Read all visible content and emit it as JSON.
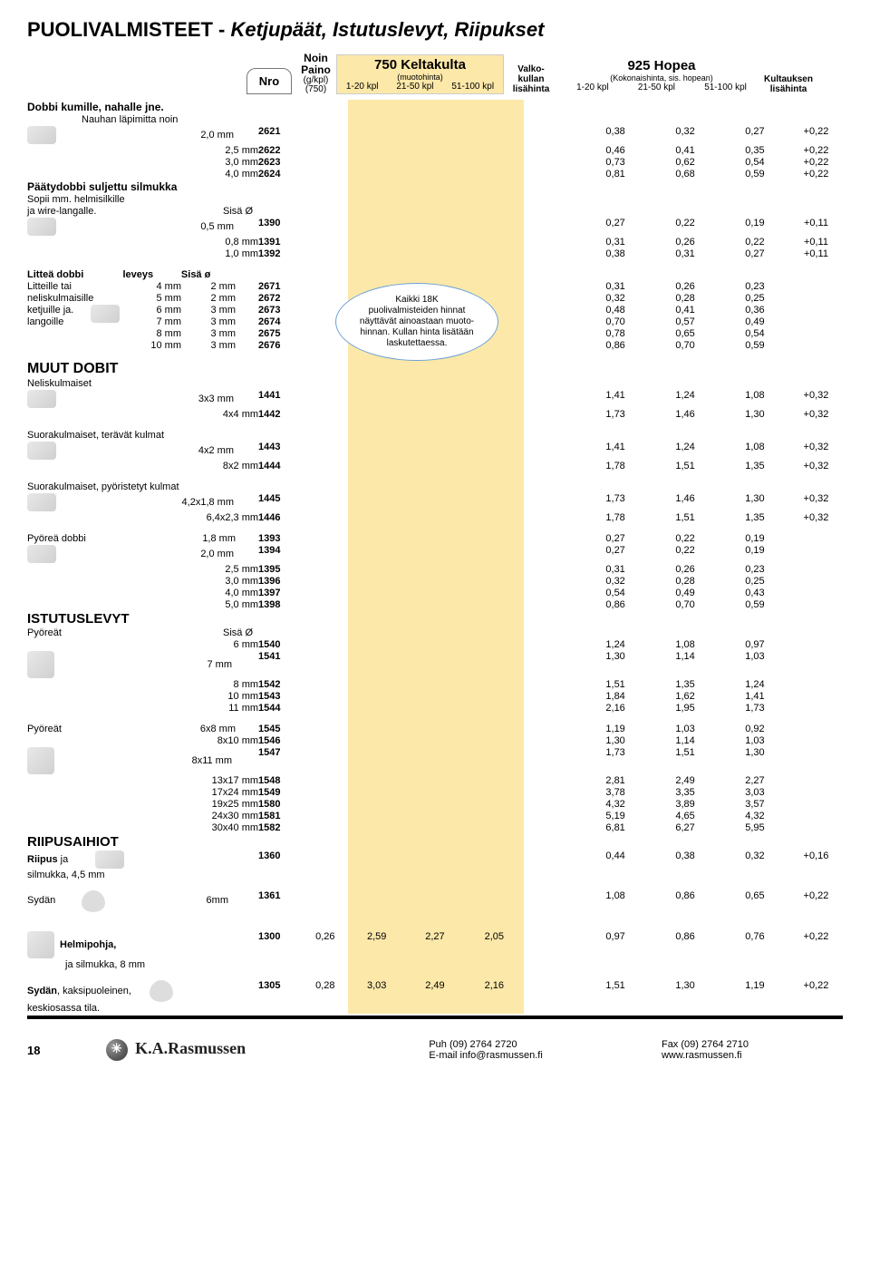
{
  "title_lead": "PUOLIVALMISTEET - ",
  "title_ital": "Ketjupäät, Istutuslevyt, Riipukset",
  "header": {
    "nro": "Nro",
    "paino_lines": [
      "Noin",
      "Paino",
      "(g/kpl)",
      "(750)"
    ],
    "gold_title": "750 Keltakulta",
    "gold_sub": "(muotohinta)",
    "price_cols": [
      "1-20 kpl",
      "21-50 kpl",
      "51-100 kpl"
    ],
    "valko": [
      "Valko-",
      "kullan",
      "lisähinta"
    ],
    "silver_title": "925 Hopea",
    "silver_sub": "(Kokonaishinta, sis. hopean)",
    "kult": [
      "Kultauksen",
      "lisähinta"
    ]
  },
  "bubble": [
    "Kaikki 18K",
    "puolivalmisteiden hinnat",
    "näyttävät ainoastaan muoto-",
    "hinnan. Kullan hinta lisätään",
    "laskutettaessa."
  ],
  "sections": {
    "dobbi_kumille": {
      "title": "Dobbi kumille, nahalle jne.",
      "sub": "Nauhan läpimitta noin",
      "rows": [
        {
          "lbl": "2,0 mm",
          "nro": "2621",
          "s1": "0,38",
          "s2": "0,32",
          "s3": "0,27",
          "kl": "+0,22"
        },
        {
          "lbl": "2,5 mm",
          "nro": "2622",
          "s1": "0,46",
          "s2": "0,41",
          "s3": "0,35",
          "kl": "+0,22"
        },
        {
          "lbl": "3,0 mm",
          "nro": "2623",
          "s1": "0,73",
          "s2": "0,62",
          "s3": "0,54",
          "kl": "+0,22"
        },
        {
          "lbl": "4,0 mm",
          "nro": "2624",
          "s1": "0,81",
          "s2": "0,68",
          "s3": "0,59",
          "kl": "+0,22"
        }
      ]
    },
    "paatydobbi": {
      "title": "Päätydobbi suljettu silmukka",
      "sub1": "Sopii mm. helmisilkille",
      "sub2": "ja wire-langalle.",
      "sub_r": "Sisä Ø",
      "rows": [
        {
          "lbl": "0,5 mm",
          "nro": "1390",
          "s1": "0,27",
          "s2": "0,22",
          "s3": "0,19",
          "kl": "+0,11"
        },
        {
          "lbl": "0,8 mm",
          "nro": "1391",
          "s1": "0,31",
          "s2": "0,26",
          "s3": "0,22",
          "kl": "+0,11"
        },
        {
          "lbl": "1,0 mm",
          "nro": "1392",
          "s1": "0,38",
          "s2": "0,31",
          "s3": "0,27",
          "kl": "+0,11"
        }
      ]
    },
    "littea": {
      "head": [
        "Litteä dobbi",
        "leveys",
        "Sisä ø"
      ],
      "descs": [
        "Litteille tai",
        "neliskulmaisille",
        "ketjuille ja.",
        "langoille",
        "",
        ""
      ],
      "rows": [
        {
          "lev": "4 mm",
          "siso": "2 mm",
          "nro": "2671",
          "s1": "0,31",
          "s2": "0,26",
          "s3": "0,23"
        },
        {
          "lev": "5 mm",
          "siso": "2 mm",
          "nro": "2672",
          "s1": "0,32",
          "s2": "0,28",
          "s3": "0,25"
        },
        {
          "lev": "6 mm",
          "siso": "3 mm",
          "nro": "2673",
          "s1": "0,48",
          "s2": "0,41",
          "s3": "0,36"
        },
        {
          "lev": "7 mm",
          "siso": "3 mm",
          "nro": "2674",
          "s1": "0,70",
          "s2": "0,57",
          "s3": "0,49"
        },
        {
          "lev": "8 mm",
          "siso": "3 mm",
          "nro": "2675",
          "s1": "0,78",
          "s2": "0,65",
          "s3": "0,54"
        },
        {
          "lev": "10 mm",
          "siso": "3 mm",
          "nro": "2676",
          "s1": "0,86",
          "s2": "0,70",
          "s3": "0,59"
        }
      ]
    },
    "muut": {
      "title": "MUUT DOBIT",
      "sub": "Neliskulmaiset",
      "rows": [
        {
          "lbl": "3x3 mm",
          "nro": "1441",
          "s1": "1,41",
          "s2": "1,24",
          "s3": "1,08",
          "kl": "+0,32"
        },
        {
          "lbl": "4x4 mm",
          "nro": "1442",
          "s1": "1,73",
          "s2": "1,46",
          "s3": "1,30",
          "kl": "+0,32"
        }
      ]
    },
    "suora_terava": {
      "title": "Suorakulmaiset, terävät kulmat",
      "rows": [
        {
          "lbl": "4x2 mm",
          "nro": "1443",
          "s1": "1,41",
          "s2": "1,24",
          "s3": "1,08",
          "kl": "+0,32"
        },
        {
          "lbl": "8x2 mm",
          "nro": "1444",
          "s1": "1,78",
          "s2": "1,51",
          "s3": "1,35",
          "kl": "+0,32"
        }
      ]
    },
    "suora_pyor": {
      "title": "Suorakulmaiset, pyöristetyt kulmat",
      "rows": [
        {
          "lbl": "4,2x1,8 mm",
          "nro": "1445",
          "s1": "1,73",
          "s2": "1,46",
          "s3": "1,30",
          "kl": "+0,32"
        },
        {
          "lbl": "6,4x2,3 mm",
          "nro": "1446",
          "s1": "1,78",
          "s2": "1,51",
          "s3": "1,35",
          "kl": "+0,32"
        }
      ]
    },
    "pyorea_dobbi": {
      "title": "Pyöreä dobbi",
      "rows": [
        {
          "lbl": "1,8 mm",
          "nro": "1393",
          "s1": "0,27",
          "s2": "0,22",
          "s3": "0,19"
        },
        {
          "lbl": "2,0 mm",
          "nro": "1394",
          "s1": "0,27",
          "s2": "0,22",
          "s3": "0,19"
        },
        {
          "lbl": "2,5 mm",
          "nro": "1395",
          "s1": "0,31",
          "s2": "0,26",
          "s3": "0,23"
        },
        {
          "lbl": "3,0 mm",
          "nro": "1396",
          "s1": "0,32",
          "s2": "0,28",
          "s3": "0,25"
        },
        {
          "lbl": "4,0 mm",
          "nro": "1397",
          "s1": "0,54",
          "s2": "0,49",
          "s3": "0,43"
        },
        {
          "lbl": "5,0 mm",
          "nro": "1398",
          "s1": "0,86",
          "s2": "0,70",
          "s3": "0,59"
        }
      ]
    },
    "istutus": {
      "title": "ISTUTUSLEVYT",
      "sub": "Pyöreät",
      "sub_r": "Sisä Ø",
      "rows": [
        {
          "lbl": "6 mm",
          "nro": "1540",
          "s1": "1,24",
          "s2": "1,08",
          "s3": "0,97"
        },
        {
          "lbl": "7 mm",
          "nro": "1541",
          "s1": "1,30",
          "s2": "1,14",
          "s3": "1,03"
        },
        {
          "lbl": "8 mm",
          "nro": "1542",
          "s1": "1,51",
          "s2": "1,35",
          "s3": "1,24"
        },
        {
          "lbl": "10 mm",
          "nro": "1543",
          "s1": "1,84",
          "s2": "1,62",
          "s3": "1,41"
        },
        {
          "lbl": "11 mm",
          "nro": "1544",
          "s1": "2,16",
          "s2": "1,95",
          "s3": "1,73"
        }
      ]
    },
    "pyoreat2": {
      "title": "Pyöreät",
      "rows": [
        {
          "lbl": "6x8 mm",
          "nro": "1545",
          "s1": "1,19",
          "s2": "1,03",
          "s3": "0,92"
        },
        {
          "lbl": "8x10 mm",
          "nro": "1546",
          "s1": "1,30",
          "s2": "1,14",
          "s3": "1,03"
        },
        {
          "lbl": "8x11 mm",
          "nro": "1547",
          "s1": "1,73",
          "s2": "1,51",
          "s3": "1,30"
        },
        {
          "lbl": "13x17 mm",
          "nro": "1548",
          "s1": "2,81",
          "s2": "2,49",
          "s3": "2,27"
        },
        {
          "lbl": "17x24 mm",
          "nro": "1549",
          "s1": "3,78",
          "s2": "3,35",
          "s3": "3,03"
        },
        {
          "lbl": "19x25 mm",
          "nro": "1580",
          "s1": "4,32",
          "s2": "3,89",
          "s3": "3,57"
        },
        {
          "lbl": "24x30 mm",
          "nro": "1581",
          "s1": "5,19",
          "s2": "4,65",
          "s3": "4,32"
        },
        {
          "lbl": "30x40 mm",
          "nro": "1582",
          "s1": "6,81",
          "s2": "6,27",
          "s3": "5,95"
        }
      ]
    },
    "riipus": {
      "title": "RIIPUSAIHIOT",
      "rows": [
        {
          "lbl_l": "Riipus",
          "lbl_l2": " ja",
          "sub": "silmukka, 4,5 mm",
          "lbl": "",
          "nro": "1360",
          "s1": "0,44",
          "s2": "0,38",
          "s3": "0,32",
          "kl": "+0,16"
        }
      ]
    },
    "sydan": {
      "rows": [
        {
          "lbl_l": "Sydän",
          "lbl": "6mm",
          "nro": "1361",
          "s1": "1,08",
          "s2": "0,86",
          "s3": "0,65",
          "kl": "+0,22"
        }
      ]
    },
    "helmi": {
      "rows": [
        {
          "lbl_l": "Helmipohja,",
          "sub": "ja silmukka, 8 mm",
          "nro": "1300",
          "paino": "0,26",
          "g1": "2,59",
          "g2": "2,27",
          "g3": "2,05",
          "s1": "0,97",
          "s2": "0,86",
          "s3": "0,76",
          "kl": "+0,22"
        }
      ]
    },
    "sydan2": {
      "rows": [
        {
          "lbl_l": "Sydän",
          "lbl_l2": ", kaksipuoleinen,",
          "sub": "keskiosassa tila.",
          "nro": "1305",
          "paino": "0,28",
          "g1": "3,03",
          "g2": "2,49",
          "g3": "2,16",
          "s1": "1,51",
          "s2": "1,30",
          "s3": "1,19",
          "kl": "+0,22"
        }
      ]
    }
  },
  "footer": {
    "page": "18",
    "logo": "K.A.Rasmussen",
    "c1a": "Puh (09) 2764 2720",
    "c1b": "E-mail info@rasmussen.fi",
    "c2a": "Fax (09) 2764 2710",
    "c2b": "www.rasmussen.fi"
  }
}
